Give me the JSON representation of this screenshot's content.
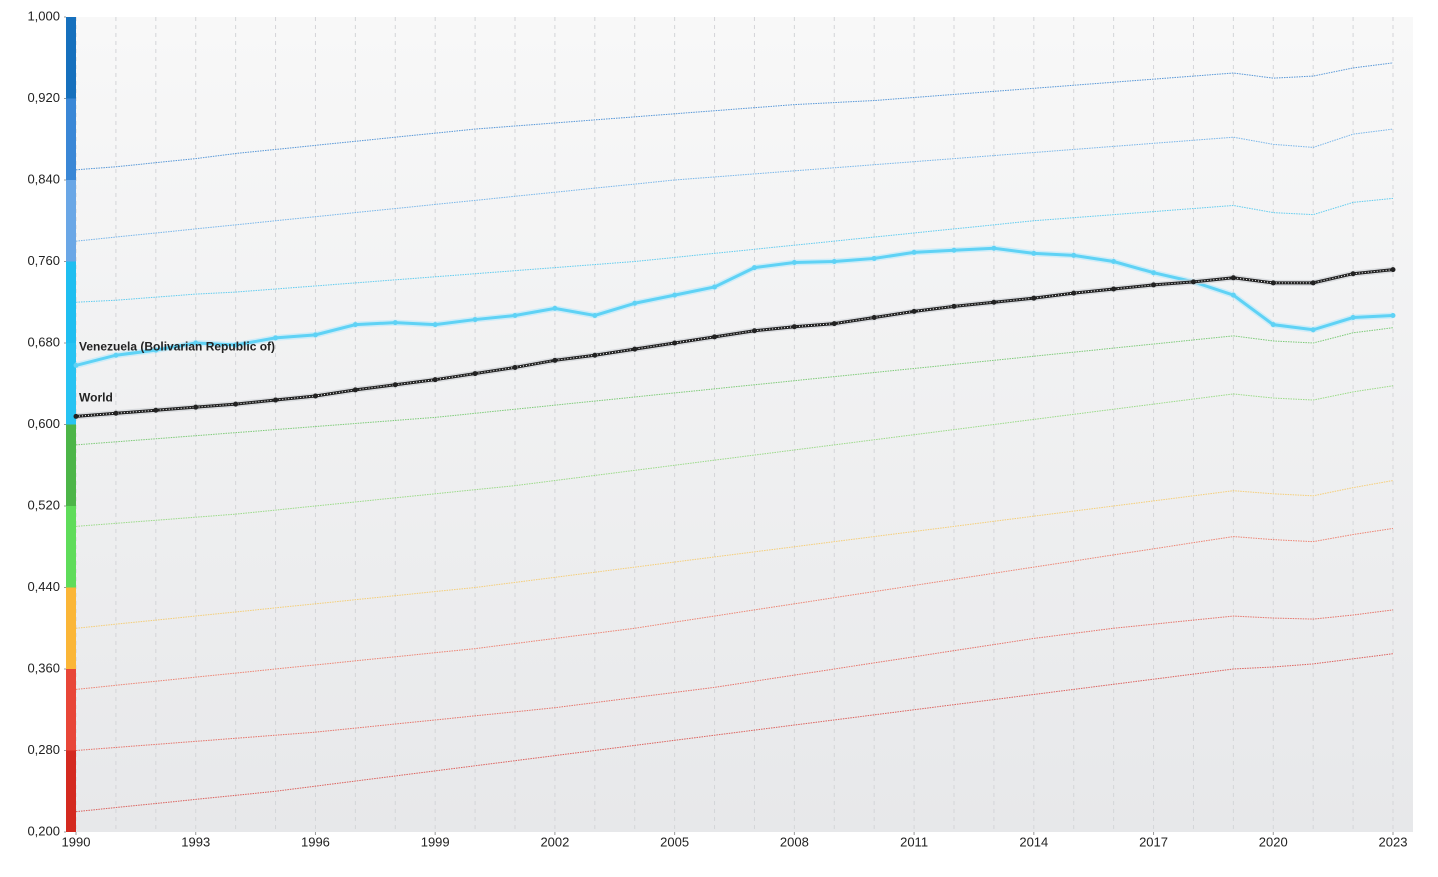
{
  "chart_data": {
    "type": "line",
    "x": [
      1990,
      1991,
      1992,
      1993,
      1994,
      1995,
      1996,
      1997,
      1998,
      1999,
      2000,
      2001,
      2002,
      2003,
      2004,
      2005,
      2006,
      2007,
      2008,
      2009,
      2010,
      2011,
      2012,
      2013,
      2014,
      2015,
      2016,
      2017,
      2018,
      2019,
      2020,
      2021,
      2022,
      2023
    ],
    "xlim": [
      1990,
      2023
    ],
    "xticks": [
      1990,
      1993,
      1996,
      1999,
      2002,
      2005,
      2008,
      2011,
      2014,
      2017,
      2020,
      2023
    ],
    "ylim": [
      0.2,
      1.0
    ],
    "yticks": [
      {
        "value": 0.2,
        "label": "0,200"
      },
      {
        "value": 0.28,
        "label": "0,280"
      },
      {
        "value": 0.36,
        "label": "0,360"
      },
      {
        "value": 0.44,
        "label": "0,440"
      },
      {
        "value": 0.52,
        "label": "0,520"
      },
      {
        "value": 0.6,
        "label": "0,600"
      },
      {
        "value": 0.68,
        "label": "0,680"
      },
      {
        "value": 0.76,
        "label": "0,760"
      },
      {
        "value": 0.84,
        "label": "0,840"
      },
      {
        "value": 0.92,
        "label": "0,920"
      },
      {
        "value": 1.0,
        "label": "1,000"
      }
    ],
    "band_colors": [
      "#d42a20",
      "#e84638",
      "#fbb637",
      "#5fdc5a",
      "#4cb548",
      "#27c3f2",
      "#1fbef0",
      "#6aa7e6",
      "#3a87d6",
      "#1670bd"
    ],
    "grid": true,
    "series": [
      {
        "color": "#2f7fd0",
        "values": [
          0.85,
          0.853,
          0.857,
          0.861,
          0.866,
          0.87,
          0.874,
          0.878,
          0.882,
          0.886,
          0.89,
          0.893,
          0.896,
          0.899,
          0.902,
          0.905,
          0.908,
          0.911,
          0.914,
          0.916,
          0.918,
          0.921,
          0.924,
          0.927,
          0.93,
          0.933,
          0.936,
          0.939,
          0.942,
          0.945,
          0.94,
          0.942,
          0.95,
          0.955
        ]
      },
      {
        "color": "#5aa6e6",
        "values": [
          0.78,
          0.784,
          0.788,
          0.792,
          0.796,
          0.8,
          0.804,
          0.808,
          0.812,
          0.816,
          0.82,
          0.824,
          0.828,
          0.832,
          0.836,
          0.84,
          0.843,
          0.846,
          0.849,
          0.852,
          0.855,
          0.858,
          0.861,
          0.864,
          0.867,
          0.87,
          0.873,
          0.876,
          0.879,
          0.882,
          0.875,
          0.872,
          0.885,
          0.89
        ]
      },
      {
        "color": "#3cc2ee",
        "values": [
          0.72,
          0.722,
          0.725,
          0.728,
          0.73,
          0.733,
          0.736,
          0.739,
          0.742,
          0.745,
          0.748,
          0.751,
          0.754,
          0.757,
          0.76,
          0.764,
          0.768,
          0.772,
          0.776,
          0.78,
          0.784,
          0.788,
          0.792,
          0.796,
          0.8,
          0.803,
          0.806,
          0.809,
          0.812,
          0.815,
          0.808,
          0.806,
          0.818,
          0.822
        ]
      },
      {
        "color": "#62c25a",
        "values": [
          0.58,
          0.583,
          0.586,
          0.589,
          0.592,
          0.595,
          0.598,
          0.601,
          0.604,
          0.607,
          0.611,
          0.615,
          0.619,
          0.623,
          0.627,
          0.631,
          0.635,
          0.639,
          0.643,
          0.647,
          0.651,
          0.655,
          0.659,
          0.663,
          0.667,
          0.671,
          0.675,
          0.679,
          0.683,
          0.687,
          0.682,
          0.68,
          0.69,
          0.695
        ]
      },
      {
        "color": "#86d46e",
        "values": [
          0.5,
          0.503,
          0.506,
          0.509,
          0.512,
          0.516,
          0.52,
          0.524,
          0.528,
          0.532,
          0.536,
          0.54,
          0.545,
          0.55,
          0.555,
          0.56,
          0.565,
          0.57,
          0.575,
          0.58,
          0.585,
          0.59,
          0.595,
          0.6,
          0.605,
          0.61,
          0.615,
          0.62,
          0.625,
          0.63,
          0.626,
          0.624,
          0.632,
          0.638
        ]
      },
      {
        "color": "#f6c55a",
        "values": [
          0.4,
          0.404,
          0.408,
          0.412,
          0.416,
          0.42,
          0.424,
          0.428,
          0.432,
          0.436,
          0.44,
          0.445,
          0.45,
          0.455,
          0.46,
          0.465,
          0.47,
          0.475,
          0.48,
          0.485,
          0.49,
          0.495,
          0.5,
          0.505,
          0.51,
          0.515,
          0.52,
          0.525,
          0.53,
          0.535,
          0.532,
          0.53,
          0.538,
          0.545
        ]
      },
      {
        "color": "#ec6a55",
        "values": [
          0.34,
          0.344,
          0.348,
          0.352,
          0.356,
          0.36,
          0.364,
          0.368,
          0.372,
          0.376,
          0.38,
          0.385,
          0.39,
          0.395,
          0.4,
          0.406,
          0.412,
          0.418,
          0.424,
          0.43,
          0.436,
          0.442,
          0.448,
          0.454,
          0.46,
          0.466,
          0.472,
          0.478,
          0.484,
          0.49,
          0.487,
          0.485,
          0.492,
          0.498
        ]
      },
      {
        "color": "#e5564a",
        "values": [
          0.28,
          0.283,
          0.286,
          0.289,
          0.292,
          0.295,
          0.298,
          0.302,
          0.306,
          0.31,
          0.314,
          0.318,
          0.322,
          0.327,
          0.332,
          0.337,
          0.342,
          0.348,
          0.354,
          0.36,
          0.366,
          0.372,
          0.378,
          0.384,
          0.39,
          0.395,
          0.4,
          0.404,
          0.408,
          0.412,
          0.41,
          0.409,
          0.413,
          0.418
        ]
      },
      {
        "color": "#d8403a",
        "values": [
          0.22,
          0.224,
          0.228,
          0.232,
          0.236,
          0.24,
          0.245,
          0.25,
          0.255,
          0.26,
          0.265,
          0.27,
          0.275,
          0.28,
          0.285,
          0.29,
          0.295,
          0.3,
          0.305,
          0.31,
          0.315,
          0.32,
          0.325,
          0.33,
          0.335,
          0.34,
          0.345,
          0.35,
          0.355,
          0.36,
          0.362,
          0.365,
          0.37,
          0.375
        ]
      },
      {
        "name": "Venezuela (Bolivarian Republic of)",
        "color": "#5fd2f5",
        "highlight": true,
        "values": [
          0.658,
          0.668,
          0.673,
          0.68,
          0.678,
          0.685,
          0.688,
          0.698,
          0.7,
          0.698,
          0.703,
          0.707,
          0.714,
          0.707,
          0.719,
          0.727,
          0.735,
          0.754,
          0.759,
          0.76,
          0.763,
          0.769,
          0.771,
          0.773,
          0.768,
          0.766,
          0.76,
          0.749,
          0.74,
          0.727,
          0.698,
          0.693,
          0.705,
          0.707
        ]
      },
      {
        "name": "World",
        "color": "#222222",
        "highlight": true,
        "values": [
          0.608,
          0.611,
          0.614,
          0.617,
          0.62,
          0.624,
          0.628,
          0.634,
          0.639,
          0.644,
          0.65,
          0.656,
          0.663,
          0.668,
          0.674,
          0.68,
          0.686,
          0.692,
          0.696,
          0.699,
          0.705,
          0.711,
          0.716,
          0.72,
          0.724,
          0.729,
          0.733,
          0.737,
          0.74,
          0.744,
          0.739,
          0.739,
          0.748,
          0.752
        ]
      }
    ]
  }
}
